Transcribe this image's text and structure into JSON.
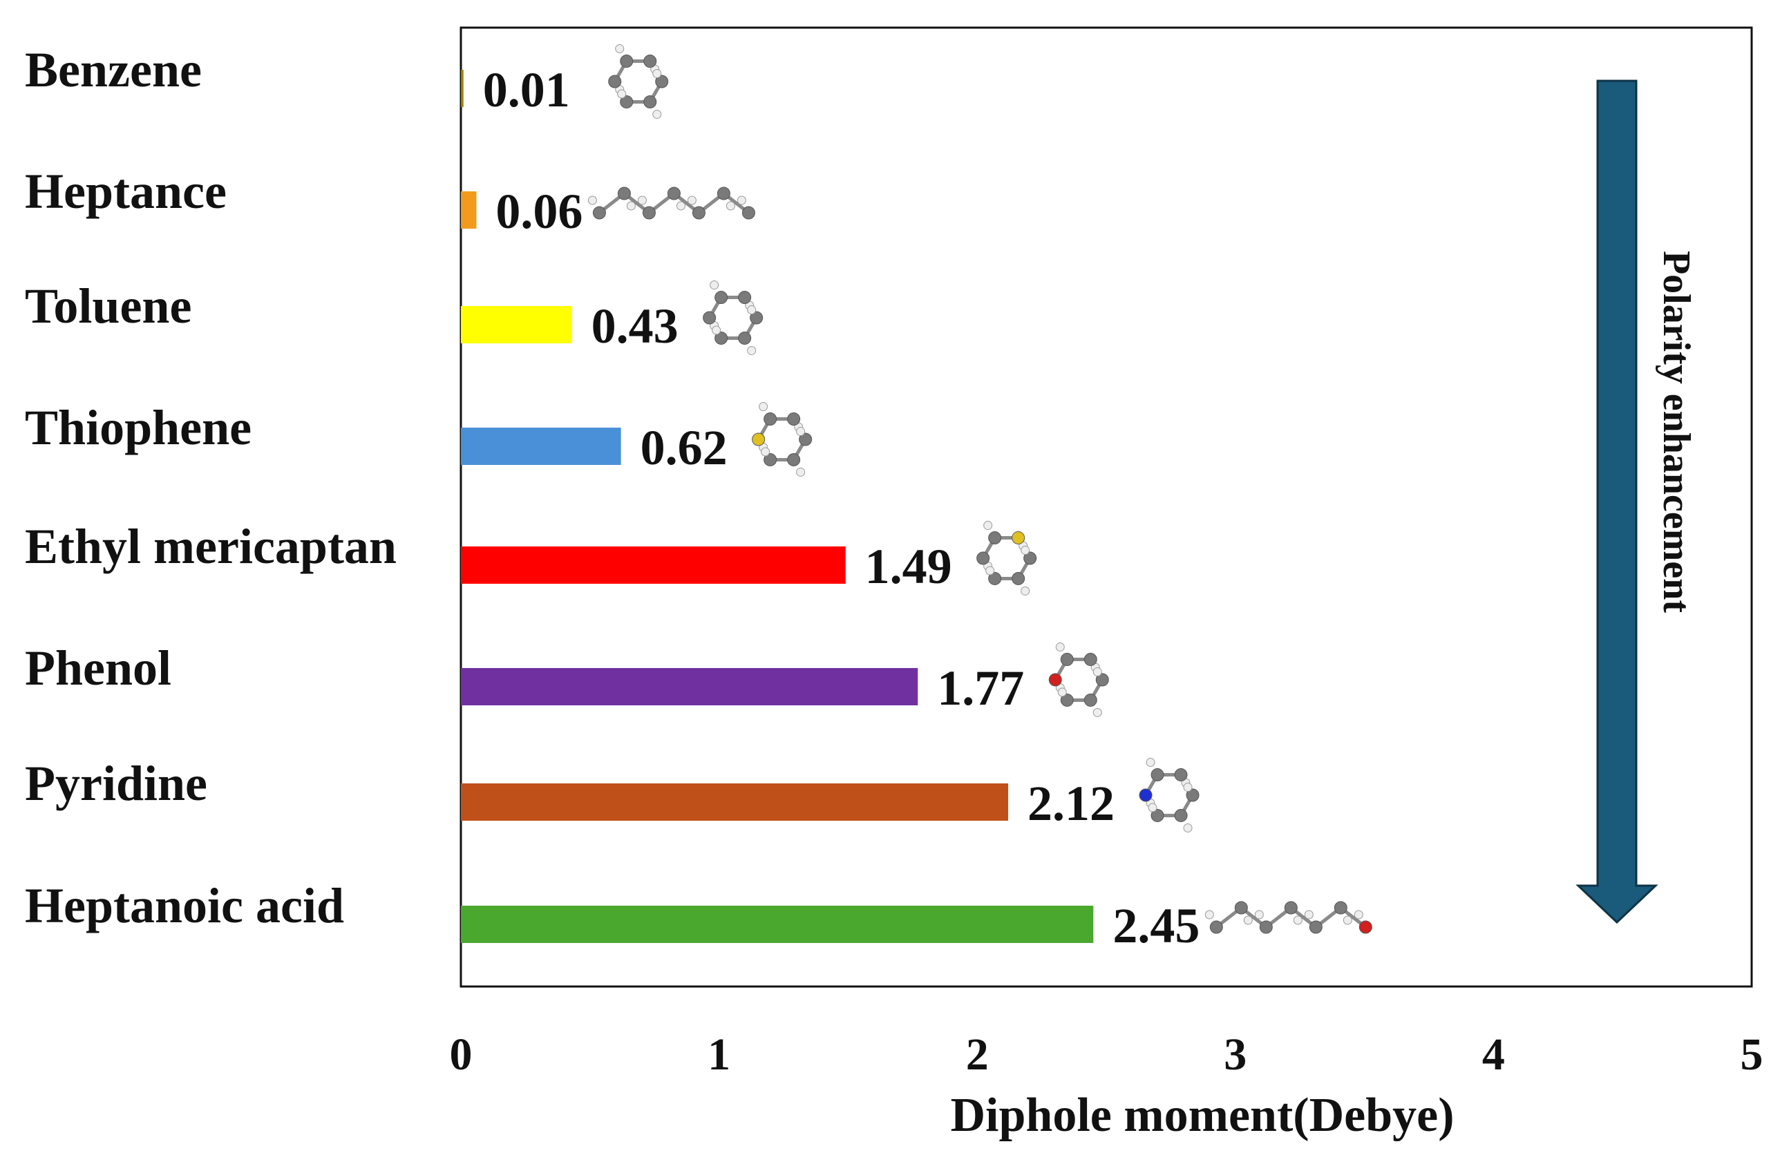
{
  "chart_data": {
    "type": "bar",
    "orientation": "horizontal",
    "categories": [
      "Benzene",
      "Heptance",
      "Toluene",
      "Thiophene",
      "Ethyl mericaptan",
      "Phenol",
      "Pyridine",
      "Heptanoic acid"
    ],
    "values": [
      0.01,
      0.06,
      0.43,
      0.62,
      1.49,
      1.77,
      2.12,
      2.45
    ],
    "value_labels": [
      "0.01",
      "0.06",
      "0.43",
      "0.62",
      "1.49",
      "1.77",
      "2.12",
      "2.45"
    ],
    "bar_colors": [
      "#a08000",
      "#f39a1c",
      "#ffff00",
      "#4a90d9",
      "#ff0000",
      "#7030a0",
      "#c0501a",
      "#4aa82e"
    ],
    "xlabel": "Diphole moment(Debye)",
    "xlim": [
      0,
      5
    ],
    "xticks": [
      "0",
      "1",
      "2",
      "3",
      "4",
      "5"
    ],
    "grid": false,
    "annotation": {
      "text": "Polarity enhancement",
      "arrow_direction": "down",
      "arrow_color": "#1a5a7a"
    },
    "molecule_icons": [
      "benzene-molecule-icon",
      "heptane-molecule-icon",
      "toluene-molecule-icon",
      "thiophene-molecule-icon",
      "ethyl-mercaptan-molecule-icon",
      "phenol-molecule-icon",
      "pyridine-molecule-icon",
      "heptanoic-acid-molecule-icon"
    ]
  }
}
